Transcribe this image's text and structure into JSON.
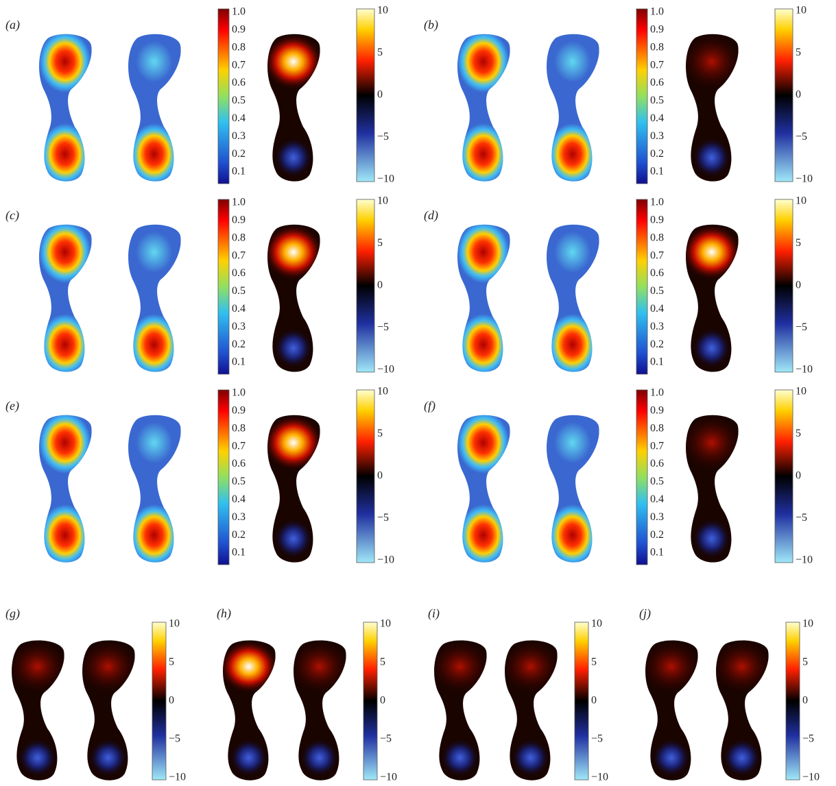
{
  "panels": [
    {
      "label": "(a)",
      "jet_ticks": [
        "1.0",
        "0.9",
        "0.8",
        "0.7",
        "0.6",
        "0.5",
        "0.4",
        "0.3",
        "0.2",
        "0.1"
      ],
      "diff_ticks": [
        "10",
        "5",
        "0",
        "−5",
        "−10"
      ]
    },
    {
      "label": "(b)",
      "jet_ticks": [
        "1.0",
        "0.9",
        "0.8",
        "0.7",
        "0.6",
        "0.5",
        "0.4",
        "0.3",
        "0.2",
        "0.1"
      ],
      "diff_ticks": [
        "10",
        "5",
        "0",
        "−5",
        "−10"
      ]
    },
    {
      "label": "(c)",
      "jet_ticks": [
        "1.0",
        "0.9",
        "0.8",
        "0.7",
        "0.6",
        "0.5",
        "0.4",
        "0.3",
        "0.2",
        "0.1"
      ],
      "diff_ticks": [
        "10",
        "5",
        "0",
        "−5",
        "−10"
      ]
    },
    {
      "label": "(d)",
      "jet_ticks": [
        "1.0",
        "0.9",
        "0.8",
        "0.7",
        "0.6",
        "0.5",
        "0.4",
        "0.3",
        "0.2",
        "0.1"
      ],
      "diff_ticks": [
        "10",
        "5",
        "0",
        "−5",
        "−10"
      ]
    },
    {
      "label": "(e)",
      "jet_ticks": [
        "1.0",
        "0.9",
        "0.8",
        "0.7",
        "0.6",
        "0.5",
        "0.4",
        "0.3",
        "0.2",
        "0.1"
      ],
      "diff_ticks": [
        "10",
        "5",
        "0",
        "−5",
        "−10"
      ]
    },
    {
      "label": "(f)",
      "jet_ticks": [
        "1.0",
        "0.9",
        "0.8",
        "0.7",
        "0.6",
        "0.5",
        "0.4",
        "0.3",
        "0.2",
        "0.1"
      ],
      "diff_ticks": [
        "10",
        "5",
        "0",
        "−5",
        "−10"
      ]
    }
  ],
  "bottom_panels": [
    {
      "label": "(g)",
      "diff_ticks": [
        "10",
        "5",
        "0",
        "−5",
        "−10"
      ]
    },
    {
      "label": "(h)",
      "diff_ticks": [
        "10",
        "5",
        "0",
        "−5",
        "−10"
      ]
    },
    {
      "label": "(i)",
      "diff_ticks": [
        "10",
        "5",
        "0",
        "−5",
        "−10"
      ]
    },
    {
      "label": "(j)",
      "diff_ticks": [
        "10",
        "5",
        "0",
        "−5",
        "−10"
      ]
    }
  ]
}
